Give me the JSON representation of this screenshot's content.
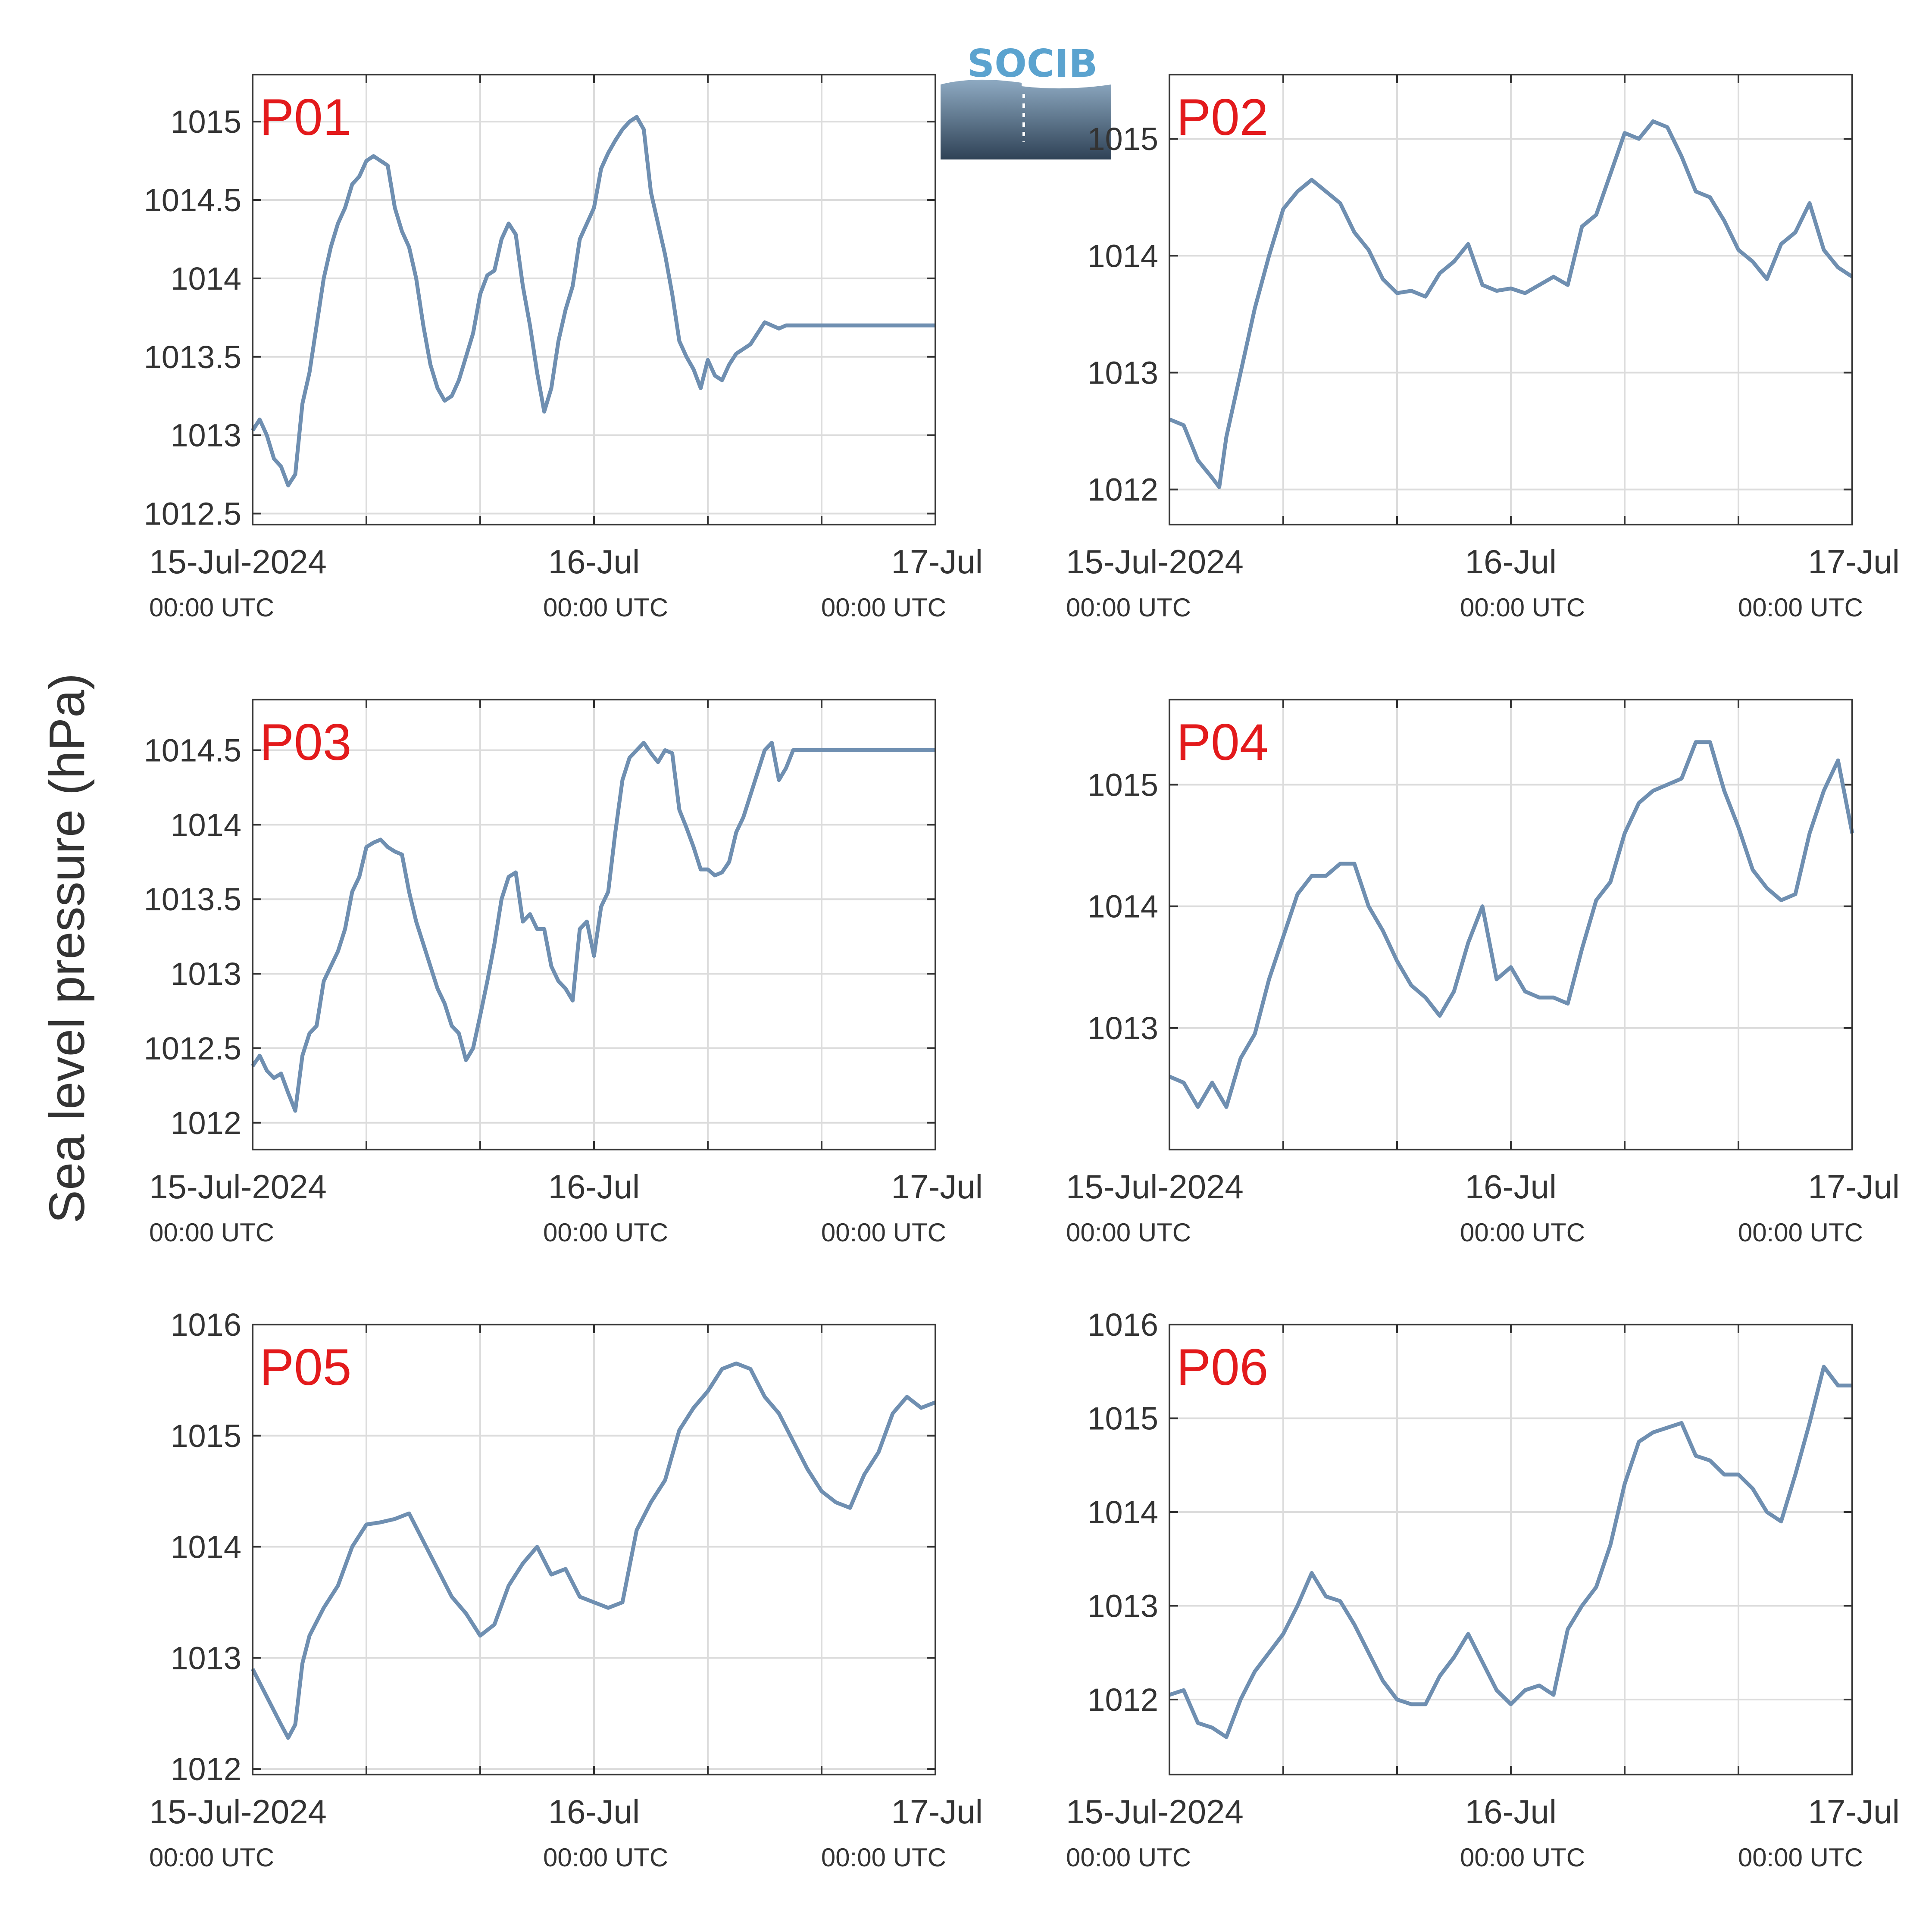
{
  "ylabel": "Sea level pressure (hPa)",
  "logo": {
    "text": "SOCIB",
    "text_color": "#5ba3cf",
    "dark_color": "#2f4256",
    "light_color": "#8eaac2"
  },
  "colors": {
    "series": "#6f8fb1",
    "grid": "#dcdcdc",
    "axis": "#333333",
    "label": "#e31a1c"
  },
  "x_ticks": [
    {
      "x": 0,
      "line1": "15-Jul-2024",
      "line2": "00:00 UTC"
    },
    {
      "x": 24,
      "line1": "16-Jul",
      "line2": "00:00 UTC"
    },
    {
      "x": 48,
      "line1": "17-Jul",
      "line2": "00:00 UTC"
    }
  ],
  "chart_data": [
    {
      "type": "line",
      "label": "P01",
      "xlim": [
        0,
        48
      ],
      "ylim": [
        1012.43,
        1015.3
      ],
      "yticks": [
        1012.5,
        1013,
        1013.5,
        1014,
        1014.5,
        1015
      ],
      "ytick_labels": [
        "1012.5",
        "1013",
        "1013.5",
        "1014",
        "1014.5",
        "1015"
      ],
      "x": [
        0,
        0.5,
        1,
        1.5,
        2,
        2.5,
        3,
        3.5,
        4,
        4.5,
        5,
        5.5,
        6,
        6.5,
        7,
        7.5,
        8,
        8.5,
        9,
        9.5,
        10,
        10.5,
        11,
        11.5,
        12,
        12.5,
        13,
        13.5,
        14,
        14.5,
        15,
        15.5,
        16,
        16.5,
        17,
        17.5,
        18,
        18.5,
        19,
        19.5,
        20,
        20.5,
        21,
        21.5,
        22,
        22.5,
        23,
        23.5,
        24,
        24.5,
        25,
        25.5,
        26,
        26.5,
        27,
        27.5,
        28,
        28.5,
        29,
        29.5,
        30,
        30.5,
        31,
        31.5,
        32,
        32.5,
        33,
        33.5,
        34,
        34.5,
        35,
        35.5,
        36,
        36.5,
        37,
        37.5,
        38,
        38.5,
        39,
        39.5,
        40,
        40.5,
        41,
        41.5,
        42,
        42.5,
        43,
        43.5,
        44,
        44.5,
        45,
        45.5,
        46,
        46.5,
        47,
        47.5,
        48
      ],
      "y": [
        1013.03,
        1013.1,
        1013.0,
        1012.85,
        1012.8,
        1012.68,
        1012.75,
        1013.2,
        1013.4,
        1013.7,
        1014.0,
        1014.2,
        1014.35,
        1014.45,
        1014.6,
        1014.65,
        1014.75,
        1014.78,
        1014.75,
        1014.72,
        1014.45,
        1014.3,
        1014.2,
        1014.0,
        1013.7,
        1013.45,
        1013.3,
        1013.22,
        1013.25,
        1013.35,
        1013.5,
        1013.65,
        1013.9,
        1014.02,
        1014.05,
        1014.25,
        1014.35,
        1014.28,
        1013.95,
        1013.7,
        1013.4,
        1013.15,
        1013.3,
        1013.6,
        1013.8,
        1013.95,
        1014.25,
        1014.35,
        1014.45,
        1014.7,
        1014.8,
        1014.88,
        1014.95,
        1015.0,
        1015.03,
        1014.95,
        1014.55,
        1014.35,
        1014.15,
        1013.9,
        1013.6,
        1013.5,
        1013.42,
        1013.3,
        1013.48,
        1013.38,
        1013.35,
        1013.45,
        1013.52,
        1013.55,
        1013.58,
        1013.65,
        1013.72,
        1013.7,
        1013.68,
        1013.7,
        1013.7,
        1013.7,
        1013.7,
        1013.7,
        1013.7,
        1013.7,
        1013.7,
        1013.7,
        1013.7,
        1013.7,
        1013.7,
        1013.7,
        1013.7,
        1013.7,
        1013.7,
        1013.7,
        1013.7,
        1013.7,
        1013.7,
        1013.7,
        1013.7
      ]
    },
    {
      "type": "line",
      "label": "P02",
      "xlim": [
        0,
        48
      ],
      "ylim": [
        1011.7,
        1015.55
      ],
      "yticks": [
        1012,
        1013,
        1014,
        1015
      ],
      "ytick_labels": [
        "1012",
        "1013",
        "1014",
        "1015"
      ],
      "x": [
        0,
        1,
        2,
        3,
        3.5,
        4,
        5,
        6,
        7,
        8,
        9,
        10,
        11,
        12,
        13,
        14,
        15,
        16,
        17,
        18,
        19,
        20,
        21,
        22,
        23,
        24,
        25,
        26,
        27,
        28,
        29,
        30,
        31,
        32,
        33,
        34,
        35,
        36,
        37,
        38,
        39,
        40,
        41,
        42,
        43,
        44,
        45,
        46,
        47,
        48
      ],
      "y": [
        1012.6,
        1012.55,
        1012.25,
        1012.1,
        1012.02,
        1012.45,
        1013.0,
        1013.55,
        1014.0,
        1014.4,
        1014.55,
        1014.65,
        1014.55,
        1014.45,
        1014.2,
        1014.05,
        1013.8,
        1013.68,
        1013.7,
        1013.65,
        1013.85,
        1013.95,
        1014.1,
        1013.75,
        1013.7,
        1013.72,
        1013.68,
        1013.75,
        1013.82,
        1013.75,
        1014.25,
        1014.35,
        1014.7,
        1015.05,
        1015.0,
        1015.15,
        1015.1,
        1014.85,
        1014.55,
        1014.5,
        1014.3,
        1014.05,
        1013.95,
        1013.8,
        1014.1,
        1014.2,
        1014.45,
        1014.05,
        1013.9,
        1013.82
      ]
    },
    {
      "type": "line",
      "label": "P03",
      "xlim": [
        0,
        48
      ],
      "ylim": [
        1011.82,
        1014.84
      ],
      "yticks": [
        1012,
        1012.5,
        1013,
        1013.5,
        1014,
        1014.5
      ],
      "ytick_labels": [
        "1012",
        "1012.5",
        "1013",
        "1013.5",
        "1014",
        "1014.5"
      ],
      "x": [
        0,
        0.5,
        1,
        1.5,
        2,
        2.5,
        3,
        3.5,
        4,
        4.5,
        5,
        5.5,
        6,
        6.5,
        7,
        7.5,
        8,
        8.5,
        9,
        9.5,
        10,
        10.5,
        11,
        11.5,
        12,
        12.5,
        13,
        13.5,
        14,
        14.5,
        15,
        15.5,
        16,
        16.5,
        17,
        17.5,
        18,
        18.5,
        19,
        19.5,
        20,
        20.5,
        21,
        21.5,
        22,
        22.5,
        23,
        23.5,
        24,
        24.5,
        25,
        25.5,
        26,
        26.5,
        27,
        27.5,
        28,
        28.5,
        29,
        29.5,
        30,
        30.5,
        31,
        31.5,
        32,
        32.5,
        33,
        33.5,
        34,
        34.5,
        35,
        35.5,
        36,
        36.5,
        37,
        37.5,
        38,
        38.5,
        39,
        39.5,
        40,
        40.5,
        41,
        41.5,
        42,
        42.5,
        43,
        43.5,
        44,
        44.5,
        45,
        45.5,
        46,
        46.5,
        47,
        47.5,
        48
      ],
      "y": [
        1012.38,
        1012.45,
        1012.35,
        1012.3,
        1012.33,
        1012.2,
        1012.08,
        1012.45,
        1012.6,
        1012.65,
        1012.95,
        1013.05,
        1013.15,
        1013.3,
        1013.55,
        1013.65,
        1013.85,
        1013.88,
        1013.9,
        1013.85,
        1013.82,
        1013.8,
        1013.55,
        1013.35,
        1013.2,
        1013.05,
        1012.9,
        1012.8,
        1012.65,
        1012.6,
        1012.42,
        1012.5,
        1012.72,
        1012.95,
        1013.2,
        1013.5,
        1013.65,
        1013.68,
        1013.35,
        1013.4,
        1013.3,
        1013.3,
        1013.05,
        1012.95,
        1012.9,
        1012.82,
        1013.3,
        1013.35,
        1013.12,
        1013.45,
        1013.55,
        1013.95,
        1014.3,
        1014.45,
        1014.5,
        1014.55,
        1014.48,
        1014.42,
        1014.5,
        1014.48,
        1014.1,
        1013.98,
        1013.85,
        1013.7,
        1013.7,
        1013.66,
        1013.68,
        1013.75,
        1013.95,
        1014.05,
        1014.2,
        1014.35,
        1014.5,
        1014.55,
        1014.3,
        1014.38,
        1014.5,
        1014.5,
        1014.5,
        1014.5,
        1014.5,
        1014.5,
        1014.5,
        1014.5,
        1014.5,
        1014.5,
        1014.5,
        1014.5,
        1014.5,
        1014.5,
        1014.5,
        1014.5,
        1014.5,
        1014.5,
        1014.5,
        1014.5,
        1014.5
      ]
    },
    {
      "type": "line",
      "label": "P04",
      "xlim": [
        0,
        48
      ],
      "ylim": [
        1012.0,
        1015.7
      ],
      "yticks": [
        1013,
        1014,
        1015
      ],
      "ytick_labels": [
        "1013",
        "1014",
        "1015"
      ],
      "x": [
        0,
        1,
        2,
        3,
        4,
        5,
        6,
        7,
        8,
        9,
        10,
        11,
        12,
        13,
        14,
        15,
        16,
        17,
        18,
        19,
        20,
        21,
        22,
        23,
        24,
        25,
        26,
        27,
        28,
        29,
        30,
        31,
        32,
        33,
        34,
        35,
        36,
        37,
        38,
        39,
        40,
        41,
        42,
        43,
        44,
        45,
        46,
        47,
        48
      ],
      "y": [
        1012.6,
        1012.55,
        1012.35,
        1012.55,
        1012.35,
        1012.75,
        1012.95,
        1013.4,
        1013.75,
        1014.1,
        1014.25,
        1014.25,
        1014.35,
        1014.35,
        1014.0,
        1013.8,
        1013.55,
        1013.35,
        1013.25,
        1013.1,
        1013.3,
        1013.7,
        1014.0,
        1013.4,
        1013.5,
        1013.3,
        1013.25,
        1013.25,
        1013.2,
        1013.65,
        1014.05,
        1014.2,
        1014.6,
        1014.85,
        1014.95,
        1015.0,
        1015.05,
        1015.35,
        1015.35,
        1014.95,
        1014.65,
        1014.3,
        1014.15,
        1014.05,
        1014.1,
        1014.6,
        1014.95,
        1015.2,
        1014.6
      ]
    },
    {
      "type": "line",
      "label": "P05",
      "xlim": [
        0,
        48
      ],
      "ylim": [
        1011.95,
        1016.0
      ],
      "yticks": [
        1012,
        1013,
        1014,
        1015,
        1016
      ],
      "ytick_labels": [
        "1012",
        "1013",
        "1014",
        "1015",
        "1016"
      ],
      "x": [
        0,
        1,
        2,
        2.5,
        3,
        3.5,
        4,
        5,
        6,
        7,
        8,
        9,
        10,
        11,
        12,
        13,
        14,
        15,
        16,
        17,
        18,
        19,
        20,
        21,
        22,
        23,
        24,
        25,
        26,
        27,
        28,
        29,
        30,
        31,
        32,
        33,
        34,
        35,
        36,
        37,
        38,
        39,
        40,
        41,
        42,
        43,
        44,
        45,
        46,
        47,
        48
      ],
      "y": [
        1012.9,
        1012.65,
        1012.4,
        1012.28,
        1012.4,
        1012.95,
        1013.2,
        1013.45,
        1013.65,
        1014.0,
        1014.2,
        1014.22,
        1014.25,
        1014.3,
        1014.05,
        1013.8,
        1013.55,
        1013.4,
        1013.2,
        1013.3,
        1013.65,
        1013.85,
        1014.0,
        1013.75,
        1013.8,
        1013.55,
        1013.5,
        1013.45,
        1013.5,
        1014.15,
        1014.4,
        1014.6,
        1015.05,
        1015.25,
        1015.4,
        1015.6,
        1015.65,
        1015.6,
        1015.35,
        1015.2,
        1014.95,
        1014.7,
        1014.5,
        1014.4,
        1014.35,
        1014.65,
        1014.85,
        1015.2,
        1015.35,
        1015.25,
        1015.3
      ]
    },
    {
      "type": "line",
      "label": "P06",
      "xlim": [
        0,
        48
      ],
      "ylim": [
        1011.2,
        1016.0
      ],
      "yticks": [
        1012,
        1013,
        1014,
        1015,
        1016
      ],
      "ytick_labels": [
        "1012",
        "1013",
        "1014",
        "1015",
        "1016"
      ],
      "x": [
        0,
        1,
        2,
        3,
        4,
        5,
        6,
        7,
        8,
        9,
        10,
        11,
        12,
        13,
        14,
        15,
        16,
        17,
        18,
        19,
        20,
        21,
        22,
        23,
        24,
        25,
        26,
        27,
        28,
        29,
        30,
        31,
        32,
        33,
        34,
        35,
        36,
        37,
        38,
        39,
        40,
        41,
        42,
        43,
        44,
        45,
        46,
        47,
        48
      ],
      "y": [
        1012.05,
        1012.1,
        1011.75,
        1011.7,
        1011.6,
        1012.0,
        1012.3,
        1012.5,
        1012.7,
        1013.0,
        1013.35,
        1013.1,
        1013.05,
        1012.8,
        1012.5,
        1012.2,
        1012.0,
        1011.95,
        1011.95,
        1012.25,
        1012.45,
        1012.7,
        1012.4,
        1012.1,
        1011.95,
        1012.1,
        1012.15,
        1012.05,
        1012.75,
        1013.0,
        1013.2,
        1013.65,
        1014.3,
        1014.75,
        1014.85,
        1014.9,
        1014.95,
        1014.6,
        1014.55,
        1014.4,
        1014.4,
        1014.25,
        1014.0,
        1013.9,
        1014.4,
        1014.95,
        1015.55,
        1015.35,
        1015.35
      ]
    }
  ]
}
